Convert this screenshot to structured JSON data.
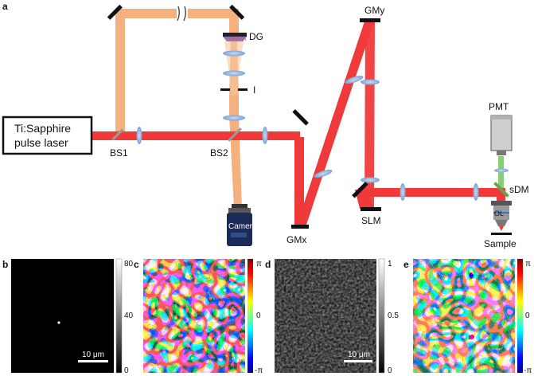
{
  "panels": {
    "a": "a",
    "b": "b",
    "c": "c",
    "d": "d",
    "e": "e"
  },
  "components": {
    "laser_line1": "Ti:Sapphire",
    "laser_line2": "pulse laser",
    "bs1": "BS1",
    "bs2": "BS2",
    "dg": "DG",
    "iris": "I",
    "camera": "Camera",
    "gmx": "GMx",
    "gmy": "GMy",
    "slm": "SLM",
    "pmt": "PMT",
    "sdm": "sDM",
    "ol": "OL",
    "sample": "Sample"
  },
  "colorbars": {
    "b": {
      "ticks": [
        "80",
        "40",
        "0"
      ]
    },
    "c": {
      "ticks": [
        "π",
        "0",
        "-π"
      ]
    },
    "d": {
      "ticks": [
        "1",
        "0.5",
        "0"
      ]
    },
    "e": {
      "ticks": [
        "π",
        "0",
        "-π"
      ]
    }
  },
  "scalebars": {
    "b": "10 μm",
    "d": "10 μm"
  },
  "colors": {
    "red_beam": "#f03a3a",
    "orange_beam": "#f5b080",
    "lens": "#8fb1dc",
    "green_beam": "#8ccd7a"
  }
}
